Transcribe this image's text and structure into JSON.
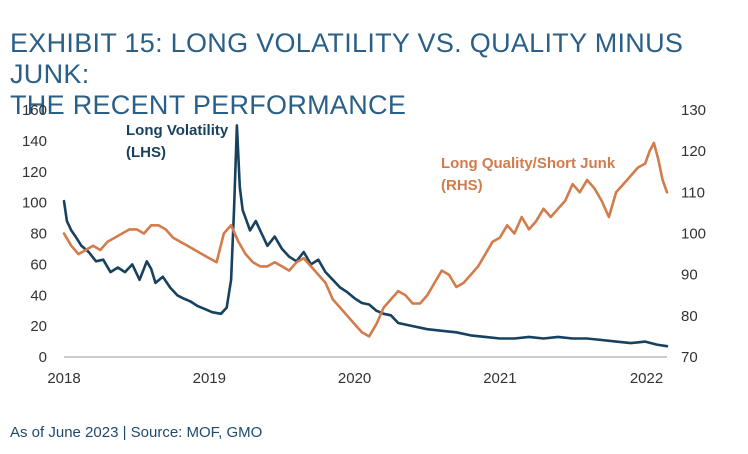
{
  "exhibit": {
    "title_line1": "EXHIBIT 15: LONG VOLATILITY VS. QUALITY MINUS JUNK:",
    "title_line2": "THE RECENT PERFORMANCE",
    "footnote": "As of June 2023 | Source: MOF, GMO"
  },
  "colors": {
    "lhs_series": "#17415f",
    "rhs_series": "#d27c4c",
    "axis_text": "#333333",
    "title": "#2a5f88"
  },
  "chart_data": {
    "type": "line",
    "title": "EXHIBIT 15: LONG VOLATILITY VS. QUALITY MINUS JUNK: THE RECENT PERFORMANCE",
    "x_ticks": [
      "2018",
      "2019",
      "2020",
      "2021",
      "2022"
    ],
    "x_range": [
      2018.0,
      2022.15
    ],
    "y_left": {
      "range": [
        0,
        160
      ],
      "ticks": [
        "0",
        "20",
        "40",
        "60",
        "80",
        "100",
        "120",
        "140",
        "160"
      ]
    },
    "y_right": {
      "range": [
        70,
        130
      ],
      "ticks": [
        "70",
        "80",
        "90",
        "100",
        "110",
        "120",
        "130"
      ]
    },
    "legend": "inline labels",
    "series": [
      {
        "name": "Long Volatility (LHS)",
        "label_line1": "Long Volatility",
        "label_line2": "(LHS)",
        "axis": "left",
        "color": "#17415f",
        "x": [
          2018.0,
          2018.02,
          2018.05,
          2018.08,
          2018.12,
          2018.17,
          2018.22,
          2018.27,
          2018.32,
          2018.37,
          2018.42,
          2018.47,
          2018.52,
          2018.57,
          2018.6,
          2018.63,
          2018.68,
          2018.73,
          2018.78,
          2018.82,
          2018.87,
          2018.92,
          2018.97,
          2019.02,
          2019.08,
          2019.12,
          2019.15,
          2019.17,
          2019.19,
          2019.21,
          2019.23,
          2019.25,
          2019.28,
          2019.32,
          2019.36,
          2019.4,
          2019.45,
          2019.5,
          2019.55,
          2019.6,
          2019.65,
          2019.7,
          2019.75,
          2019.8,
          2019.85,
          2019.9,
          2019.95,
          2020.0,
          2020.05,
          2020.1,
          2020.15,
          2020.2,
          2020.25,
          2020.3,
          2020.4,
          2020.5,
          2020.6,
          2020.7,
          2020.8,
          2020.9,
          2021.0,
          2021.1,
          2021.2,
          2021.3,
          2021.4,
          2021.5,
          2021.6,
          2021.7,
          2021.8,
          2021.9,
          2022.0,
          2022.08,
          2022.15
        ],
        "values": [
          101,
          88,
          82,
          78,
          72,
          68,
          62,
          63,
          55,
          58,
          55,
          60,
          50,
          62,
          57,
          48,
          52,
          45,
          40,
          38,
          36,
          33,
          31,
          29,
          28,
          32,
          50,
          95,
          150,
          110,
          95,
          90,
          82,
          88,
          80,
          72,
          78,
          70,
          65,
          62,
          68,
          60,
          63,
          55,
          50,
          45,
          42,
          38,
          35,
          34,
          30,
          28,
          27,
          22,
          20,
          18,
          17,
          16,
          14,
          13,
          12,
          12,
          13,
          12,
          13,
          12,
          12,
          11,
          10,
          9,
          10,
          8,
          7
        ]
      },
      {
        "name": "Long Quality/Short Junk (RHS)",
        "label_line1": "Long Quality/Short Junk",
        "label_line2": "(RHS)",
        "axis": "right",
        "color": "#d27c4c",
        "x": [
          2018.0,
          2018.05,
          2018.1,
          2018.15,
          2018.2,
          2018.25,
          2018.3,
          2018.35,
          2018.4,
          2018.45,
          2018.5,
          2018.55,
          2018.6,
          2018.65,
          2018.7,
          2018.75,
          2018.8,
          2018.85,
          2018.9,
          2018.95,
          2019.0,
          2019.05,
          2019.1,
          2019.15,
          2019.2,
          2019.25,
          2019.3,
          2019.35,
          2019.4,
          2019.45,
          2019.5,
          2019.55,
          2019.6,
          2019.65,
          2019.7,
          2019.75,
          2019.8,
          2019.85,
          2019.9,
          2019.95,
          2020.0,
          2020.05,
          2020.1,
          2020.15,
          2020.2,
          2020.25,
          2020.3,
          2020.35,
          2020.4,
          2020.45,
          2020.5,
          2020.55,
          2020.6,
          2020.65,
          2020.7,
          2020.75,
          2020.8,
          2020.85,
          2020.9,
          2020.95,
          2021.0,
          2021.05,
          2021.1,
          2021.15,
          2021.2,
          2021.25,
          2021.3,
          2021.35,
          2021.4,
          2021.45,
          2021.5,
          2021.55,
          2021.6,
          2021.65,
          2021.7,
          2021.75,
          2021.8,
          2021.85,
          2021.9,
          2021.95,
          2022.0,
          2022.03,
          2022.06,
          2022.09,
          2022.12,
          2022.15
        ],
        "values": [
          100,
          97,
          95,
          96,
          97,
          96,
          98,
          99,
          100,
          101,
          101,
          100,
          102,
          102,
          101,
          99,
          98,
          97,
          96,
          95,
          94,
          93,
          100,
          102,
          98,
          95,
          93,
          92,
          92,
          93,
          92,
          91,
          93,
          94,
          92,
          90,
          88,
          84,
          82,
          80,
          78,
          76,
          75,
          78,
          82,
          84,
          86,
          85,
          83,
          83,
          85,
          88,
          91,
          90,
          87,
          88,
          90,
          92,
          95,
          98,
          99,
          102,
          100,
          104,
          101,
          103,
          106,
          104,
          106,
          108,
          112,
          110,
          113,
          111,
          108,
          104,
          110,
          112,
          114,
          116,
          117,
          120,
          122,
          118,
          113,
          110
        ]
      }
    ]
  }
}
